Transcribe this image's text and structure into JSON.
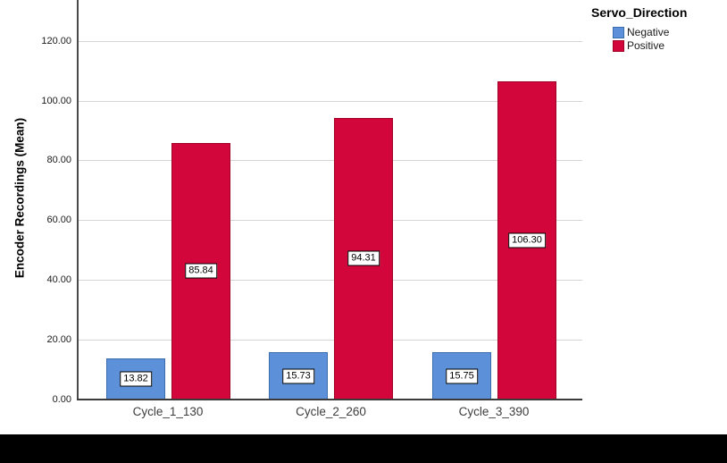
{
  "chart_data": {
    "type": "bar",
    "title": "",
    "xlabel": "",
    "ylabel": "Encoder Recordings (Mean)",
    "categories": [
      "Cycle_1_130",
      "Cycle_2_260",
      "Cycle_3_390"
    ],
    "series": [
      {
        "name": "Negative",
        "color": "#5c91d9",
        "border_color": "#3a6cb0",
        "values": [
          13.82,
          15.73,
          15.75
        ],
        "value_labels": [
          "13.82",
          "15.73",
          "15.75"
        ]
      },
      {
        "name": "Positive",
        "color": "#d2063a",
        "border_color": "#a30028",
        "values": [
          85.84,
          94.31,
          106.3
        ],
        "value_labels": [
          "85.84",
          "94.31",
          "106.30"
        ]
      }
    ],
    "y_ticks": [
      {
        "value": 0,
        "label": "0.00"
      },
      {
        "value": 20,
        "label": "20.00"
      },
      {
        "value": 40,
        "label": "40.00"
      },
      {
        "value": 60,
        "label": "60.00"
      },
      {
        "value": 80,
        "label": "80.00"
      },
      {
        "value": 100,
        "label": "100.00"
      },
      {
        "value": 120,
        "label": "120.00"
      }
    ],
    "ylim": [
      0,
      133.6
    ],
    "grid": true,
    "legend_title": "Servo_Direction",
    "legend_position": "top-right"
  }
}
